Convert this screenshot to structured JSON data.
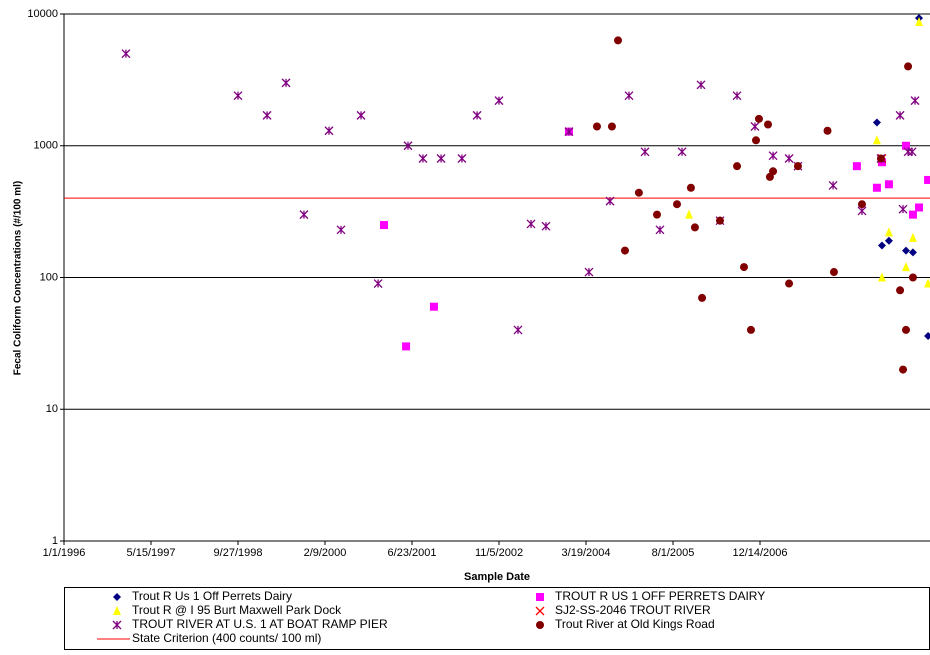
{
  "chart_data": {
    "type": "scatter",
    "x_label": "Sample Date",
    "y_label": "Fecal Coliform Concentrations (#/100 ml)",
    "log_y": true,
    "grid": true,
    "xlim": [
      "1/1/1996",
      "8/17/2009"
    ],
    "xticks": [
      "1/1/1996",
      "5/15/1997",
      "9/27/1998",
      "2/9/2000",
      "6/23/2001",
      "11/5/2002",
      "3/19/2004",
      "8/1/2005",
      "12/14/2006"
    ],
    "ylim": [
      1,
      10000
    ],
    "yticks": [
      1,
      10,
      100,
      1000,
      10000
    ],
    "criterion": {
      "name": "State Criterion  (400 counts/ 100 ml)",
      "value": 400,
      "color": "#ff0000"
    },
    "series": [
      {
        "name": "Trout R Us 1 Off Perrets Dairy",
        "color": "#000080",
        "marker": "diamond",
        "x": [
          "10/16/2008",
          "11/14/2008",
          "12/24/2008",
          "4/1/2009",
          "5/11/2009",
          "6/15/2009",
          "8/6/2009"
        ],
        "values": [
          1500,
          175,
          190,
          160,
          155,
          9300,
          36
        ]
      },
      {
        "name": "TROUT R US 1 OFF PERRETS DAIRY",
        "color": "#ff00ff",
        "marker": "square",
        "x": [
          "1/13/2001",
          "5/20/2001",
          "10/27/2001",
          "12/12/2003",
          "6/23/2008",
          "10/16/2008",
          "11/14/2008",
          "12/24/2008",
          "4/1/2009",
          "5/11/2009",
          "6/15/2009",
          "8/6/2009"
        ],
        "values": [
          250,
          30,
          60,
          1280,
          700,
          480,
          750,
          510,
          1000,
          300,
          340,
          550
        ]
      },
      {
        "name": "Trout R @ I 95 Burt Maxwell Park Dock",
        "color": "#ffff00",
        "marker": "triangle",
        "x": [
          "11/1/2005",
          "10/16/2008",
          "11/14/2008",
          "12/24/2008",
          "4/1/2009",
          "5/11/2009",
          "6/15/2009",
          "8/6/2009"
        ],
        "values": [
          300,
          1100,
          100,
          220,
          120,
          200,
          8700,
          90
        ]
      },
      {
        "name": "SJ2-SS-2046 TROUT RIVER",
        "color": "#ff0000",
        "marker": "x",
        "x": [
          "11/14/2008"
        ],
        "values": [
          800
        ]
      },
      {
        "name": "TROUT RIVER AT U.S. 1 AT BOAT RAMP PIER",
        "color": "#800080",
        "marker": "asterisk",
        "x": [
          "12/22/1996",
          "9/27/1998",
          "3/13/1999",
          "6/30/1999",
          "10/11/1999",
          "3/3/2000",
          "5/11/2000",
          "9/3/2000",
          "12/10/2000",
          "5/31/2001",
          "8/25/2001",
          "12/7/2001",
          "4/6/2002",
          "7/2/2002",
          "11/5/2002",
          "2/22/2003",
          "5/8/2003",
          "8/2/2003",
          "12/12/2003",
          "4/5/2004",
          "8/4/2004",
          "11/21/2004",
          "2/21/2005",
          "5/18/2005",
          "9/22/2005",
          "1/9/2006",
          "4/28/2006",
          "8/4/2006",
          "11/15/2006",
          "2/27/2007",
          "5/30/2007",
          "7/20/2007",
          "2/7/2008",
          "7/22/2008",
          "11/8/2008",
          "2/26/2009",
          "3/15/2009",
          "4/13/2009",
          "5/6/2009",
          "5/23/2009"
        ],
        "values": [
          5000,
          2400,
          1700,
          3000,
          300,
          1300,
          230,
          1700,
          90,
          1000,
          800,
          800,
          800,
          1700,
          2200,
          40,
          255,
          245,
          1280,
          110,
          380,
          2400,
          900,
          230,
          900,
          2900,
          270,
          2400,
          1400,
          840,
          800,
          700,
          500,
          320,
          800,
          1700,
          330,
          900,
          900,
          2200
        ]
      },
      {
        "name": "Trout River at Old Kings Road",
        "color": "#800000",
        "marker": "circle",
        "x": [
          "5/21/2004",
          "8/15/2004",
          "9/19/2004",
          "10/29/2004",
          "1/17/2005",
          "5/1/2005",
          "8/24/2005",
          "11/12/2005",
          "12/5/2005",
          "1/15/2006",
          "4/28/2006",
          "8/4/2006",
          "9/13/2006",
          "10/23/2006",
          "11/21/2006",
          "12/8/2006",
          "1/29/2007",
          "2/9/2007",
          "2/27/2007",
          "5/30/2007",
          "7/20/2007",
          "1/6/2008",
          "2/12/2008",
          "7/22/2008",
          "11/8/2008",
          "2/26/2009",
          "3/15/2009",
          "4/1/2009",
          "4/13/2009",
          "5/11/2009"
        ],
        "values": [
          1400,
          1400,
          6300,
          160,
          440,
          300,
          360,
          480,
          240,
          70,
          270,
          700,
          120,
          40,
          1100,
          1600,
          1450,
          580,
          640,
          90,
          700,
          1300,
          110,
          360,
          800,
          80,
          20,
          40,
          4000,
          100
        ]
      }
    ]
  }
}
